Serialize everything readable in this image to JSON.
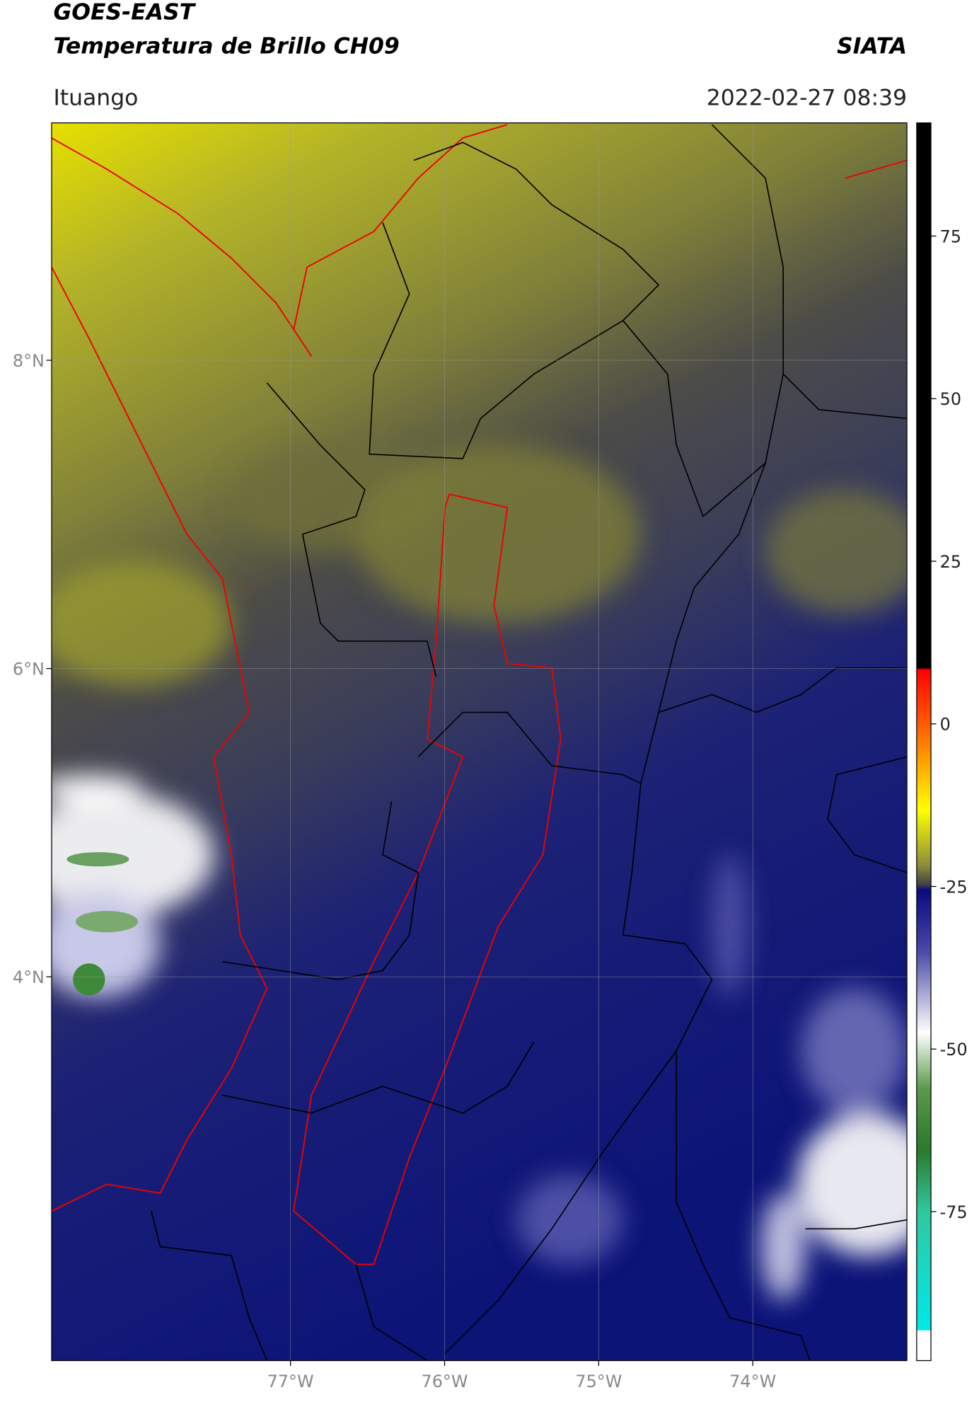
{
  "header": {
    "title_line1": "GOES-EAST",
    "title_line2": "Temperatura de Brillo CH09",
    "agency": "SIATA",
    "location": "Ituango",
    "timestamp": "2022-02-27 08:39"
  },
  "map": {
    "lon_range": [
      -78.55,
      -73.0
    ],
    "lat_range": [
      1.51,
      9.54
    ],
    "lon_ticks": [
      {
        "value": -77,
        "label": "77°W"
      },
      {
        "value": -76,
        "label": "76°W"
      },
      {
        "value": -75,
        "label": "75°W"
      },
      {
        "value": -74,
        "label": "74°W"
      }
    ],
    "lat_ticks": [
      {
        "value": 8,
        "label": "8°N"
      },
      {
        "value": 6,
        "label": "6°N"
      },
      {
        "value": 4,
        "label": "4°N"
      }
    ],
    "grid": true
  },
  "colorbar": {
    "range": [
      -97.9,
      92.4
    ],
    "ticks": [
      75,
      50,
      25,
      0,
      -25,
      -50,
      -75
    ]
  }
}
